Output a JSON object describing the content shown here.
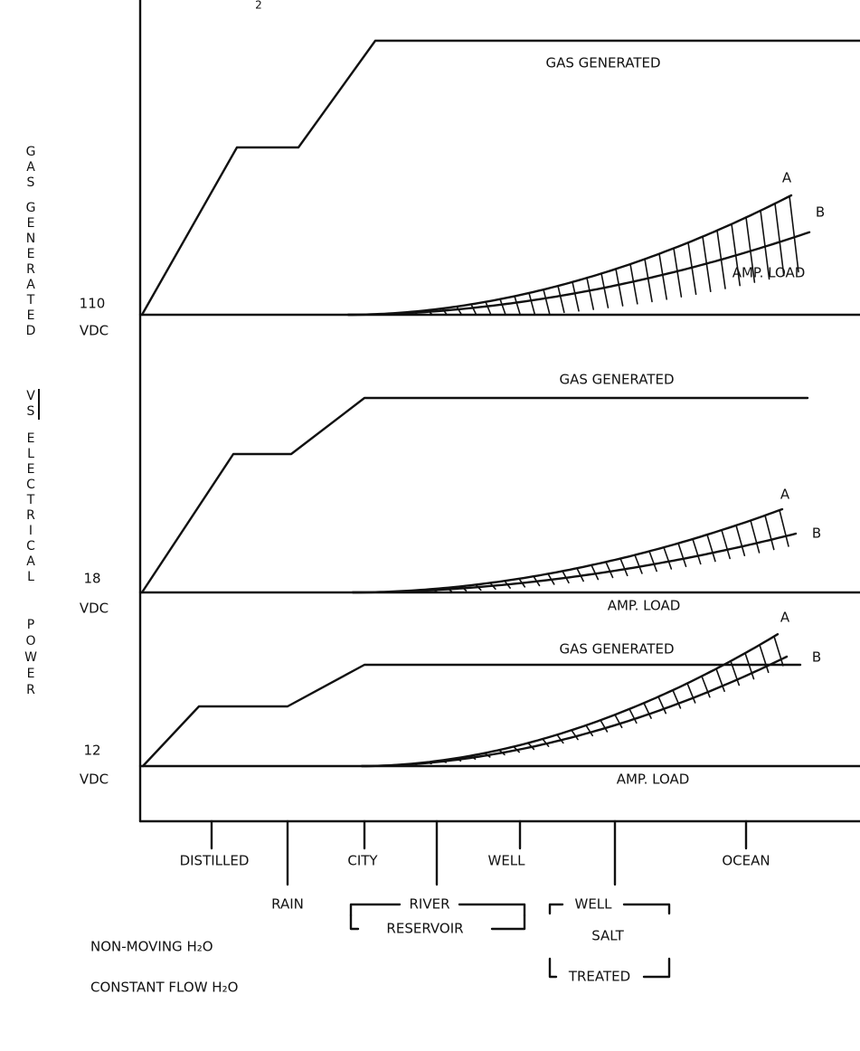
{
  "header": {
    "fragment": "2"
  },
  "y_axis_label": {
    "words": [
      "GAS",
      "GENERATED",
      "VS",
      "ELECTRICAL",
      "POWER"
    ]
  },
  "panels": [
    {
      "level": "110",
      "unit": "VDC",
      "gas_label": "GAS GENERATED",
      "curve_a": "A",
      "curve_b": "B",
      "load_label": "AMP. LOAD"
    },
    {
      "level": "18",
      "unit": "VDC",
      "gas_label": "GAS GENERATED",
      "curve_a": "A",
      "curve_b": "B",
      "load_label": "AMP. LOAD"
    },
    {
      "level": "12",
      "unit": "VDC",
      "gas_label": "GAS GENERATED",
      "curve_a": "A",
      "curve_b": "B",
      "load_label": "AMP. LOAD"
    }
  ],
  "x_axis": {
    "categories": [
      "DISTILLED",
      "RAIN",
      "CITY",
      "WELL",
      "OCEAN"
    ],
    "groups": [
      {
        "lines": [
          "RIVER",
          "RESERVOIR"
        ]
      },
      {
        "lines": [
          "WELL",
          "SALT",
          "TREATED"
        ]
      }
    ]
  },
  "legend": [
    "NON-MOVING H₂O",
    "CONSTANT FLOW H₂O"
  ]
}
